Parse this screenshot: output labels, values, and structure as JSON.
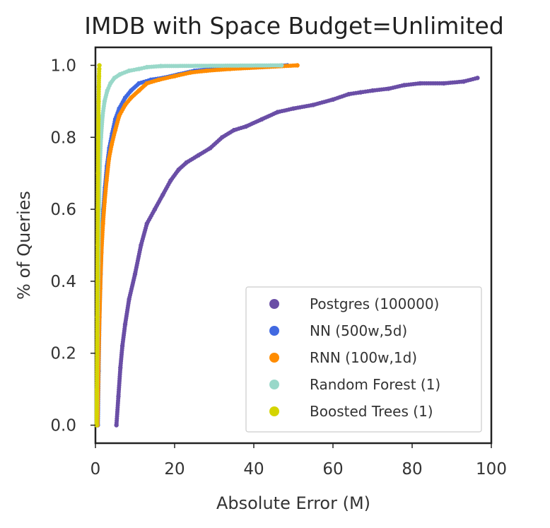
{
  "chart_data": {
    "type": "scatter",
    "title": "IMDB with Space Budget=Unlimited",
    "xlabel": "Absolute Error (M)",
    "ylabel": "% of Queries",
    "xlim": [
      0,
      100
    ],
    "ylim": [
      -0.05,
      1.05
    ],
    "xticks": [
      0,
      20,
      40,
      60,
      80,
      100
    ],
    "yticks": [
      0.0,
      0.2,
      0.4,
      0.6,
      0.8,
      1.0
    ],
    "xtick_labels": [
      "0",
      "20",
      "40",
      "60",
      "80",
      "100"
    ],
    "ytick_labels": [
      "0.0",
      "0.2",
      "0.4",
      "0.6",
      "0.8",
      "1.0"
    ],
    "grid": false,
    "legend_position": "bottom-right",
    "series": [
      {
        "name": "Postgres (100000)",
        "color": "#6a4ea6",
        "x": [
          5.3,
          5.8,
          6.3,
          6.8,
          7.5,
          8.5,
          10.0,
          11.5,
          13.0,
          15.0,
          17.0,
          19.0,
          21.0,
          23.0,
          26.0,
          29.0,
          32.0,
          35.0,
          38.0,
          42.0,
          46.0,
          50.0,
          55.0,
          60.0,
          64.0,
          67.0,
          70.0,
          74.0,
          78.0,
          82.0,
          88.0,
          93.0,
          96.5
        ],
        "y": [
          0.0,
          0.08,
          0.16,
          0.22,
          0.28,
          0.35,
          0.42,
          0.5,
          0.56,
          0.6,
          0.64,
          0.68,
          0.71,
          0.73,
          0.75,
          0.77,
          0.8,
          0.82,
          0.83,
          0.85,
          0.87,
          0.88,
          0.89,
          0.905,
          0.92,
          0.925,
          0.93,
          0.935,
          0.945,
          0.95,
          0.95,
          0.955,
          0.965
        ]
      },
      {
        "name": "NN (500w,5d)",
        "color": "#4169e1",
        "x": [
          0.6,
          0.8,
          1.0,
          1.3,
          1.6,
          2.0,
          2.4,
          2.9,
          3.5,
          4.2,
          5.0,
          6.0,
          7.5,
          9.0,
          11.0,
          14.0,
          17.0,
          21.0,
          25.0,
          30.0,
          39.0,
          48.5
        ],
        "y": [
          0.0,
          0.15,
          0.3,
          0.42,
          0.52,
          0.6,
          0.66,
          0.72,
          0.77,
          0.81,
          0.85,
          0.88,
          0.91,
          0.93,
          0.95,
          0.96,
          0.965,
          0.975,
          0.985,
          0.99,
          0.995,
          1.0
        ]
      },
      {
        "name": "RNN (100w,1d)",
        "color": "#ff8c00",
        "x": [
          0.5,
          0.7,
          0.9,
          1.2,
          1.5,
          1.9,
          2.3,
          2.8,
          3.4,
          4.1,
          5.0,
          6.0,
          7.5,
          9.0,
          11.0,
          13.0,
          16.0,
          20.0,
          24.0,
          28.0,
          34.0,
          51.0
        ],
        "y": [
          0.0,
          0.12,
          0.25,
          0.38,
          0.48,
          0.56,
          0.62,
          0.68,
          0.74,
          0.78,
          0.82,
          0.86,
          0.89,
          0.91,
          0.93,
          0.95,
          0.96,
          0.97,
          0.98,
          0.985,
          0.99,
          1.0
        ]
      },
      {
        "name": "Random Forest (1)",
        "color": "#99d8c9",
        "x": [
          0.3,
          0.5,
          0.7,
          0.9,
          1.1,
          1.4,
          1.8,
          2.3,
          3.0,
          3.8,
          4.8,
          6.2,
          8.5,
          11.0,
          13.0,
          16.5,
          47.0
        ],
        "y": [
          0.0,
          0.25,
          0.45,
          0.6,
          0.72,
          0.8,
          0.86,
          0.9,
          0.93,
          0.95,
          0.965,
          0.975,
          0.985,
          0.99,
          0.995,
          0.998,
          1.0
        ]
      },
      {
        "name": "Boosted Trees (1)",
        "color": "#d4d400",
        "x": [
          0.3,
          0.35,
          0.4,
          0.45,
          0.5,
          0.55,
          0.6,
          0.65,
          0.7,
          0.75,
          0.8,
          0.85,
          0.9,
          0.95,
          1.0
        ],
        "y": [
          0.0,
          0.1,
          0.2,
          0.3,
          0.4,
          0.5,
          0.6,
          0.7,
          0.8,
          0.85,
          0.9,
          0.94,
          0.97,
          0.99,
          1.0
        ]
      }
    ]
  }
}
